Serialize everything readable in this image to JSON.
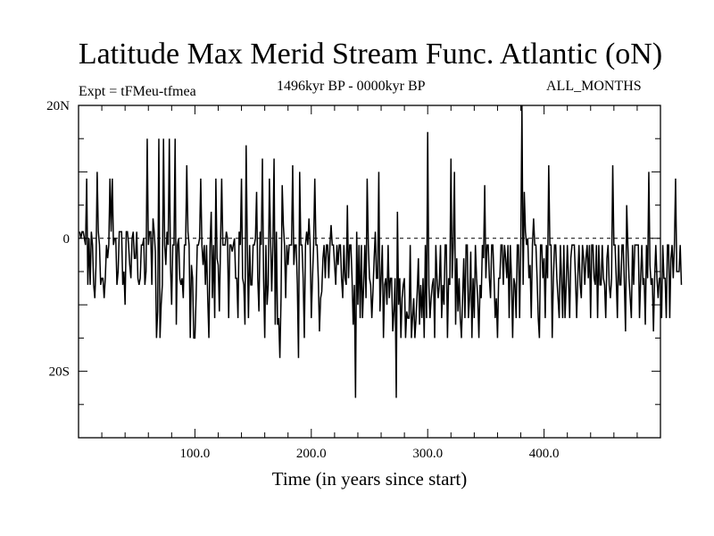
{
  "chart_data": {
    "type": "line",
    "title": "Latitude Max Merid Stream Func. Atlantic (oN)",
    "expt_label": "Expt = tFMeu-tfmea",
    "period_label": "1496kyr BP - 0000kyr BP",
    "months_label": "ALL_MONTHS",
    "xlabel": "Time (in years since start)",
    "ylabel": "",
    "xlim": [
      0,
      500
    ],
    "ylim": [
      -30,
      20
    ],
    "x_ticks": [
      {
        "value": 100,
        "label": "100.0"
      },
      {
        "value": 200,
        "label": "200.0"
      },
      {
        "value": 300,
        "label": "300.0"
      },
      {
        "value": 400,
        "label": "400.0"
      }
    ],
    "y_ticks": [
      {
        "value": 20,
        "label": "20N"
      },
      {
        "value": 0,
        "label": "0"
      },
      {
        "value": -20,
        "label": "20S"
      }
    ],
    "zero_line": "dashed",
    "x_start": 1,
    "x_step": 1,
    "values": [
      1,
      0,
      1,
      1,
      0,
      -1,
      9,
      -7,
      0,
      -7,
      1,
      -1,
      -7,
      -9,
      -4,
      10,
      1,
      -1,
      -7,
      -6,
      -6,
      -9,
      -6,
      -1,
      -3,
      -1,
      9,
      1,
      9,
      -1,
      0,
      0,
      -7,
      -5,
      1,
      1,
      1,
      -7,
      -5,
      -10,
      1,
      1,
      -1,
      -4,
      -6,
      0,
      1,
      -3,
      -3,
      1,
      -6,
      -7,
      -6,
      -1,
      -1,
      0,
      -7,
      -5,
      15,
      -1,
      1,
      1,
      -7,
      3,
      1,
      -2,
      -15,
      -11,
      15,
      -15,
      -10,
      -7,
      15,
      -1,
      -4,
      1,
      -1,
      15,
      -4,
      -10,
      -1,
      -1,
      15,
      -13,
      -1,
      0,
      -6,
      -7,
      -6,
      -9,
      -1,
      -1,
      11,
      1,
      -1,
      -15,
      -4,
      -6,
      -15,
      -15,
      -9,
      -1,
      -1,
      0,
      9,
      -1,
      -4,
      -1,
      -7,
      -1,
      -9,
      -15,
      -1,
      4,
      -9,
      -1,
      -12,
      9,
      -3,
      -4,
      -11,
      -1,
      9,
      -1,
      -1,
      -1,
      1,
      0,
      -12,
      -1,
      -1,
      -2,
      -1,
      0,
      -6,
      -6,
      -12,
      1,
      -1,
      9,
      -6,
      -7,
      -13,
      14,
      -1,
      -12,
      -1,
      -7,
      -7,
      -1,
      -1,
      0,
      7,
      -6,
      -11,
      1,
      -1,
      12,
      -6,
      -15,
      -1,
      -10,
      -7,
      9,
      0,
      -8,
      -1,
      12,
      -13,
      1,
      -13,
      -12,
      -18,
      -9,
      8,
      2,
      -1,
      -9,
      -1,
      -4,
      -1,
      -1,
      -1,
      11,
      -4,
      -1,
      -1,
      -7,
      -18,
      10,
      -1,
      -1,
      -6,
      -15,
      -1,
      1,
      -1,
      3,
      -1,
      -12,
      -6,
      -1,
      9,
      -1,
      -1,
      -6,
      -14,
      -9,
      -8,
      -3,
      -1,
      -6,
      -1,
      -1,
      -6,
      -1,
      2,
      -1,
      -1,
      -4,
      -7,
      -1,
      -4,
      -1,
      -1,
      -6,
      -9,
      -1,
      -6,
      -7,
      5,
      -6,
      -1,
      -1,
      -6,
      -13,
      -7,
      -24,
      1,
      -10,
      -1,
      -12,
      -1,
      -12,
      -7,
      -1,
      -9,
      9,
      -1,
      -6,
      -7,
      -12,
      -8,
      -3,
      1,
      -6,
      -6,
      10,
      -11,
      -6,
      -1,
      -15,
      -7,
      -6,
      -10,
      -1,
      -9,
      -6,
      -6,
      -14,
      -11,
      -6,
      -24,
      4,
      -10,
      -6,
      -15,
      -9,
      -7,
      -6,
      -15,
      -11,
      -12,
      -12,
      -1,
      -15,
      -12,
      -9,
      -15,
      -12,
      -8,
      -3,
      -13,
      -7,
      -12,
      -6,
      -15,
      -1,
      -12,
      16,
      -7,
      -12,
      -9,
      -7,
      -6,
      -15,
      -1,
      -6,
      -9,
      -7,
      -1,
      -12,
      -7,
      -10,
      -1,
      -1,
      -15,
      -6,
      -7,
      12,
      -6,
      -1,
      10,
      -13,
      -3,
      -11,
      -6,
      -12,
      -15,
      -9,
      -3,
      -12,
      -1,
      -1,
      -12,
      -9,
      -2,
      -15,
      -6,
      -12,
      -1,
      -6,
      -9,
      -15,
      -7,
      -9,
      -1,
      -3,
      8,
      -6,
      -1,
      -1,
      -6,
      -9,
      -1,
      -1,
      -6,
      -12,
      -9,
      -15,
      -6,
      -6,
      -1,
      -1,
      -7,
      -1,
      -3,
      -6,
      -1,
      -12,
      -1,
      -6,
      -15,
      -6,
      -7,
      -12,
      -1,
      -1,
      -12,
      -1,
      20,
      -7,
      7,
      1,
      -1,
      0,
      -6,
      -4,
      -12,
      -1,
      3,
      -1,
      -1,
      -6,
      -12,
      -15,
      -1,
      -1,
      -6,
      -3,
      -12,
      -1,
      -6,
      11,
      -1,
      -1,
      -15,
      -6,
      -1,
      -1,
      -6,
      -9,
      -12,
      -1,
      -6,
      -12,
      -1,
      -12,
      -7,
      -1,
      -6,
      -12,
      -3,
      -1,
      -1,
      -1,
      -6,
      -12,
      -6,
      -1,
      -7,
      -9,
      -1,
      -3,
      -7,
      -3,
      -1,
      -6,
      -1,
      -12,
      -1,
      -1,
      -6,
      -7,
      -1,
      -12,
      -1,
      -7,
      -7,
      -1,
      -6,
      -7,
      -12,
      -3,
      -1,
      -7,
      -9,
      -6,
      11,
      -1,
      -1,
      -6,
      -12,
      -1,
      -7,
      -7,
      -1,
      -1,
      -7,
      -14,
      5,
      -1,
      -6,
      -9,
      -12,
      -1,
      -7,
      -1,
      -1,
      -1,
      -1,
      -12,
      -6,
      -1,
      -7,
      -6,
      -13,
      -1,
      -6,
      10,
      -4,
      -7,
      -6,
      -14,
      -6,
      -1,
      -6,
      -9,
      -6,
      -6,
      -12,
      -1,
      -6,
      -6,
      -12,
      -1,
      -1,
      -12,
      -3,
      -1,
      -6,
      -1,
      9,
      -5,
      -5,
      -5,
      -1,
      -7
    ]
  }
}
